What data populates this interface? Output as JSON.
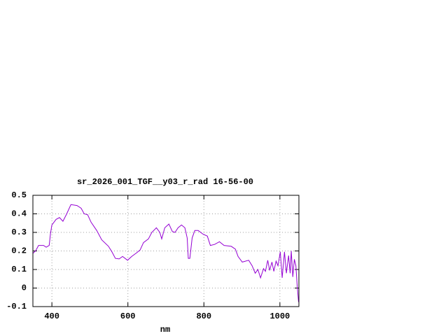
{
  "chart_data": {
    "type": "line",
    "title": "sr_2026_001_TGF__y03_r_rad 16-56-00",
    "x_label": "nm",
    "xlim": [
      350,
      1050
    ],
    "xticks": [
      400,
      600,
      800,
      1000
    ],
    "ylim": [
      -0.1,
      0.5
    ],
    "yticks": [
      0.5,
      0.4,
      0.3,
      0.2,
      0.1,
      0,
      -0.1
    ],
    "grid": true,
    "series": [
      {
        "color": "#9400d3",
        "x": [
          350,
          357,
          365,
          378,
          385,
          393,
          396,
          400,
          411,
          420,
          429,
          439,
          450,
          466,
          477,
          485,
          494,
          503,
          518,
          531,
          549,
          558,
          567,
          577,
          586,
          599,
          610,
          623,
          632,
          641,
          654,
          663,
          675,
          684,
          689,
          697,
          708,
          717,
          724,
          732,
          741,
          750,
          756,
          759,
          763,
          769,
          776,
          785,
          798,
          809,
          817,
          828,
          841,
          853,
          872,
          883,
          890,
          901,
          918,
          927,
          935,
          942,
          949,
          957,
          962,
          968,
          973,
          979,
          984,
          990,
          995,
          1001,
          1006,
          1012,
          1017,
          1023,
          1027,
          1030,
          1034,
          1038,
          1042,
          1045,
          1049
        ],
        "values": [
          0.187,
          0.2,
          0.23,
          0.23,
          0.22,
          0.23,
          0.29,
          0.34,
          0.37,
          0.38,
          0.36,
          0.4,
          0.45,
          0.445,
          0.43,
          0.4,
          0.395,
          0.355,
          0.31,
          0.26,
          0.225,
          0.195,
          0.16,
          0.157,
          0.17,
          0.15,
          0.17,
          0.19,
          0.205,
          0.245,
          0.265,
          0.3,
          0.325,
          0.3,
          0.265,
          0.325,
          0.345,
          0.305,
          0.3,
          0.325,
          0.34,
          0.325,
          0.27,
          0.16,
          0.16,
          0.27,
          0.31,
          0.31,
          0.29,
          0.28,
          0.23,
          0.235,
          0.25,
          0.23,
          0.225,
          0.21,
          0.17,
          0.14,
          0.15,
          0.12,
          0.08,
          0.1,
          0.055,
          0.105,
          0.09,
          0.15,
          0.095,
          0.14,
          0.09,
          0.145,
          0.12,
          0.195,
          0.055,
          0.195,
          0.08,
          0.175,
          0.08,
          0.2,
          0.06,
          0.155,
          0.12,
          0.025,
          -0.075
        ]
      }
    ]
  }
}
